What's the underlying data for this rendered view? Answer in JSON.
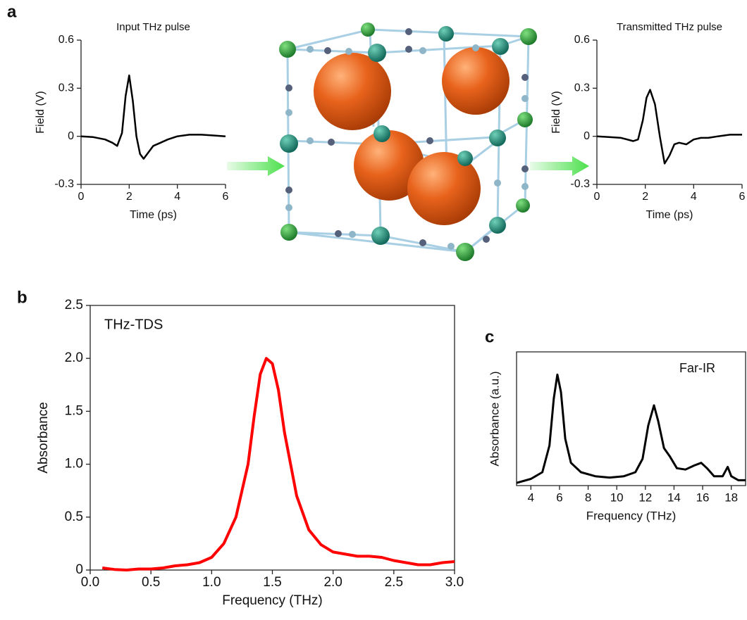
{
  "panel_labels": [
    "a",
    "b",
    "c"
  ],
  "chart_data": [
    {
      "type": "line",
      "title": "Input THz pulse",
      "x_label": "Time (ps)",
      "y_label": "Field (V)",
      "color": "#000000",
      "x": [
        0,
        0.5,
        1,
        1.3,
        1.5,
        1.7,
        1.85,
        2.0,
        2.15,
        2.3,
        2.45,
        2.6,
        2.8,
        3.0,
        3.3,
        3.6,
        4,
        4.5,
        5,
        5.5,
        6
      ],
      "values": [
        0,
        -0.005,
        -0.02,
        -0.04,
        -0.06,
        0.02,
        0.25,
        0.38,
        0.22,
        0.0,
        -0.11,
        -0.14,
        -0.1,
        -0.06,
        -0.04,
        -0.02,
        0,
        0.01,
        0.01,
        0.005,
        0
      ],
      "xlim": [
        0,
        6
      ],
      "xticks": [
        0,
        2,
        4,
        6
      ],
      "ylim": [
        -0.3,
        0.6
      ],
      "yticks": [
        -0.3,
        0,
        0.3,
        0.6
      ]
    },
    {
      "type": "line",
      "title": "Transmitted THz pulse",
      "x_label": "Time (ps)",
      "y_label": "Field (V)",
      "color": "#000000",
      "x": [
        0,
        0.5,
        1,
        1.5,
        1.7,
        1.9,
        2.05,
        2.2,
        2.4,
        2.6,
        2.8,
        3.0,
        3.2,
        3.4,
        3.7,
        4,
        4.3,
        4.6,
        5,
        5.5,
        6
      ],
      "values": [
        0,
        -0.005,
        -0.01,
        -0.03,
        -0.02,
        0.1,
        0.24,
        0.29,
        0.2,
        0.0,
        -0.17,
        -0.12,
        -0.05,
        -0.04,
        -0.05,
        -0.02,
        -0.01,
        -0.01,
        0,
        0.01,
        0.01
      ],
      "xlim": [
        0,
        6
      ],
      "xticks": [
        0,
        2,
        4,
        6
      ],
      "ylim": [
        -0.3,
        0.6
      ],
      "yticks": [
        -0.3,
        0,
        0.3,
        0.6
      ]
    },
    {
      "type": "line",
      "annotation": "THz-TDS",
      "x_label": "Frequency (THz)",
      "y_label": "Absorbance",
      "color": "#ff0000",
      "x": [
        0.1,
        0.2,
        0.3,
        0.4,
        0.5,
        0.6,
        0.7,
        0.8,
        0.9,
        1.0,
        1.1,
        1.2,
        1.3,
        1.35,
        1.4,
        1.45,
        1.5,
        1.55,
        1.6,
        1.7,
        1.8,
        1.9,
        2.0,
        2.1,
        2.2,
        2.3,
        2.4,
        2.5,
        2.6,
        2.7,
        2.8,
        2.9,
        3.0
      ],
      "values": [
        0.02,
        0.005,
        0.0,
        0.01,
        0.01,
        0.02,
        0.04,
        0.05,
        0.07,
        0.12,
        0.25,
        0.5,
        1.0,
        1.45,
        1.85,
        2.0,
        1.95,
        1.7,
        1.3,
        0.7,
        0.38,
        0.24,
        0.17,
        0.15,
        0.13,
        0.13,
        0.12,
        0.09,
        0.07,
        0.05,
        0.05,
        0.07,
        0.08
      ],
      "xlim": [
        0,
        3
      ],
      "xticks": [
        {
          "value": 0,
          "label": "0.0"
        },
        0.5,
        {
          "value": 1,
          "label": "1.0"
        },
        1.5,
        {
          "value": 2,
          "label": "2.0"
        },
        2.5,
        {
          "value": 3,
          "label": "3.0"
        }
      ],
      "ylim": [
        0,
        2.5
      ],
      "yticks": [
        0,
        0.5,
        {
          "value": 1,
          "label": "1.0"
        },
        1.5,
        {
          "value": 2,
          "label": "2.0"
        },
        2.5
      ]
    },
    {
      "type": "line",
      "annotation": "Far-IR",
      "x_label": "Frequency (THz)",
      "y_label": "Absorbance (a.u.)",
      "color": "#000000",
      "x": [
        3,
        4,
        4.8,
        5.3,
        5.6,
        5.85,
        6.1,
        6.4,
        6.8,
        7.5,
        8.5,
        9.5,
        10.5,
        11.3,
        11.8,
        12.2,
        12.6,
        12.9,
        13.3,
        13.7,
        14.2,
        14.8,
        15.4,
        15.9,
        16.3,
        16.8,
        17.4,
        17.75,
        18.0,
        18.5,
        19
      ],
      "values": [
        0.02,
        0.05,
        0.1,
        0.3,
        0.65,
        0.83,
        0.7,
        0.35,
        0.17,
        0.1,
        0.07,
        0.06,
        0.07,
        0.1,
        0.2,
        0.45,
        0.6,
        0.48,
        0.28,
        0.22,
        0.13,
        0.12,
        0.15,
        0.17,
        0.13,
        0.07,
        0.07,
        0.14,
        0.07,
        0.04,
        0.04
      ],
      "xlim": [
        3,
        19
      ],
      "xticks": [
        4,
        6,
        8,
        10,
        12,
        14,
        16,
        18
      ],
      "ylim": [
        0,
        1
      ]
    }
  ]
}
